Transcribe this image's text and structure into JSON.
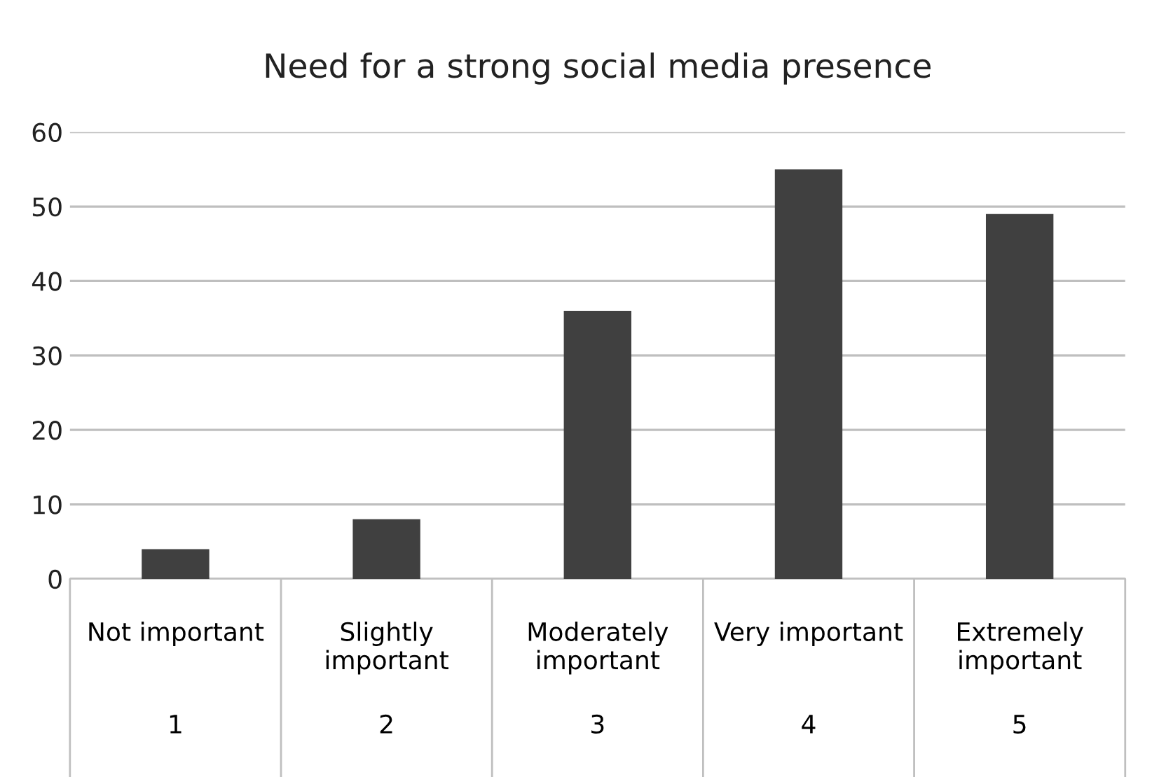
{
  "chart_data": {
    "type": "bar",
    "title": "Need for a strong social media presence",
    "categories": [
      "Not important",
      "Slightly important",
      "Moderately important",
      "Very important",
      "Extremely important"
    ],
    "values": [
      4,
      8,
      36,
      55,
      49
    ],
    "color": "#404040",
    "ylim": [
      0,
      60
    ],
    "yticks": [
      0,
      10,
      20,
      30,
      40,
      50,
      60
    ],
    "grid": "y",
    "annotations": [
      "1",
      "2",
      "3",
      "4",
      "5"
    ]
  }
}
